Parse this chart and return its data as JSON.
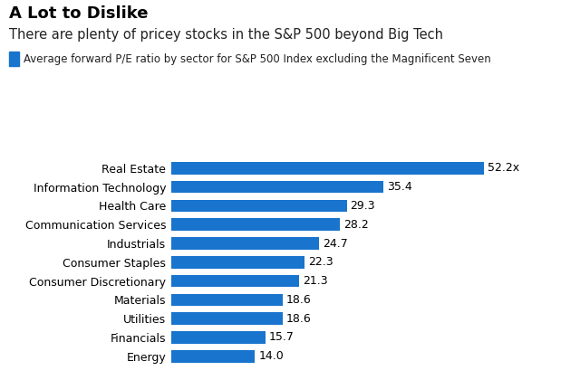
{
  "title": "A Lot to Dislike",
  "subtitle": "There are plenty of pricey stocks in the S&P 500 beyond Big Tech",
  "legend_label": "Average forward P/E ratio by sector for S&P 500 Index excluding the Magnificent Seven",
  "categories": [
    "Real Estate",
    "Information Technology",
    "Health Care",
    "Communication Services",
    "Industrials",
    "Consumer Staples",
    "Consumer Discretionary",
    "Materials",
    "Utilities",
    "Financials",
    "Energy"
  ],
  "values": [
    52.2,
    35.4,
    29.3,
    28.2,
    24.7,
    22.3,
    21.3,
    18.6,
    18.6,
    15.7,
    14.0
  ],
  "labels": [
    "52.2x",
    "35.4",
    "29.3",
    "28.2",
    "24.7",
    "22.3",
    "21.3",
    "18.6",
    "18.6",
    "15.7",
    "14.0"
  ],
  "bar_color": "#1874CD",
  "background_color": "#FFFFFF",
  "title_fontsize": 13,
  "subtitle_fontsize": 10.5,
  "legend_fontsize": 8.5,
  "label_fontsize": 9,
  "tick_fontsize": 9,
  "xlim": [
    0,
    60
  ]
}
